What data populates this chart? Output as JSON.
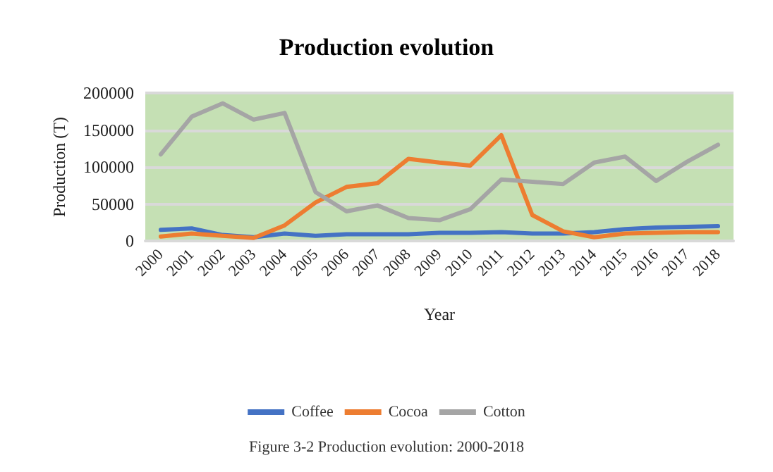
{
  "chart_data": {
    "type": "line",
    "title": "Production evolution",
    "xlabel": "Year",
    "ylabel": "Production (T)",
    "annotations": [
      "Figure 3-2 Production evolution: 2000-2018"
    ],
    "categories": [
      "2000",
      "2001",
      "2002",
      "2003",
      "2004",
      "2005",
      "2006",
      "2007",
      "2008",
      "2009",
      "2010",
      "2011",
      "2012",
      "2013",
      "2014",
      "2015",
      "2016",
      "2017",
      "2018"
    ],
    "series": [
      {
        "name": "Coffee",
        "color": "#4472c4",
        "values": [
          15000,
          17000,
          8000,
          5000,
          10000,
          7000,
          9000,
          9000,
          9000,
          11000,
          11000,
          12000,
          10000,
          10000,
          12000,
          16000,
          18000,
          19000,
          20000
        ]
      },
      {
        "name": "Cocoa",
        "color": "#ed7d31",
        "values": [
          6000,
          10000,
          7000,
          4000,
          21000,
          52000,
          73000,
          78000,
          111000,
          106000,
          102000,
          143000,
          35000,
          13000,
          5000,
          10000,
          11000,
          12000,
          12000
        ]
      },
      {
        "name": "Cotton",
        "color": "#a5a5a5",
        "values": [
          117000,
          168000,
          186000,
          164000,
          173000,
          66000,
          40000,
          48000,
          31000,
          28000,
          43000,
          83000,
          80000,
          77000,
          106000,
          114000,
          81000,
          107000,
          130000
        ]
      }
    ],
    "ylim": [
      0,
      200000
    ],
    "yticks": [
      0,
      50000,
      100000,
      150000,
      200000
    ],
    "grid": "y",
    "legend": "bottom",
    "marker": "none",
    "line_style": "solid"
  }
}
